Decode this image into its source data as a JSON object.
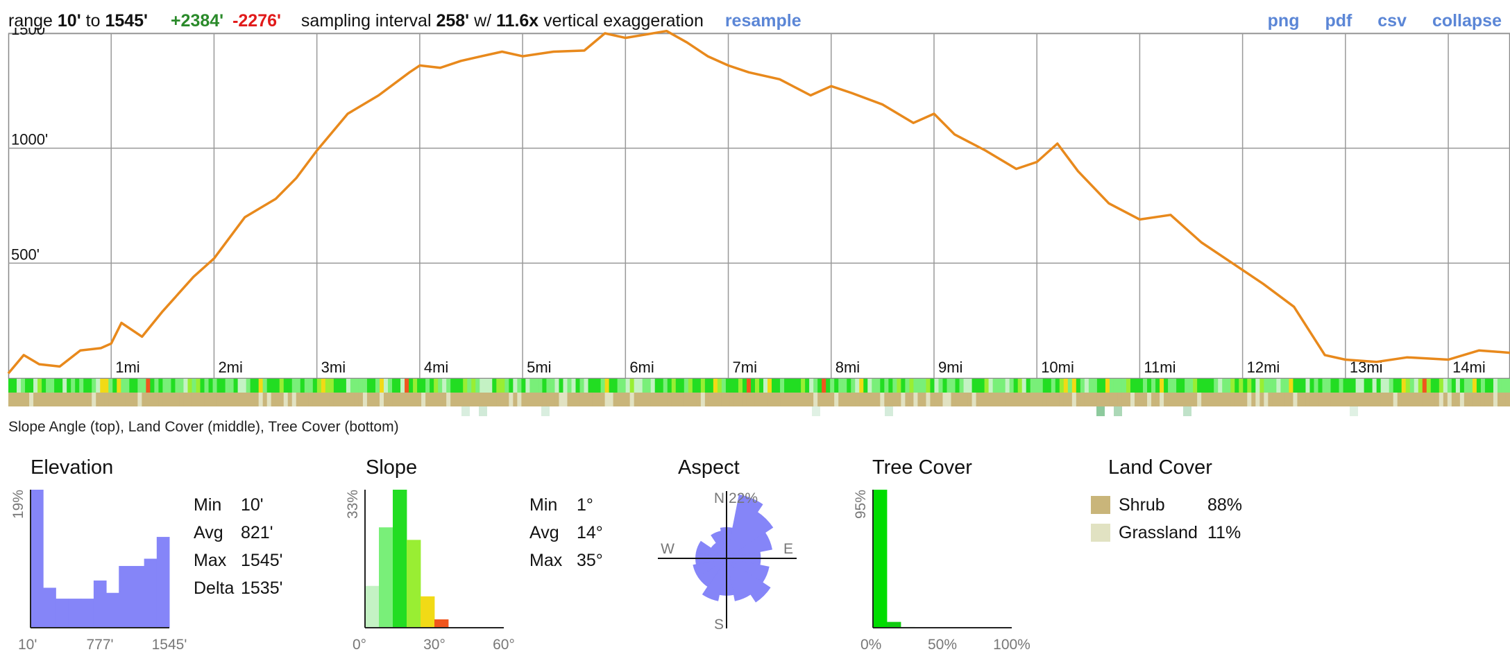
{
  "header": {
    "range_label": "range",
    "range_min": "10'",
    "range_to": "to",
    "range_max": "1545'",
    "gain": "+2384'",
    "loss": "-2276'",
    "sampling_label": "sampling interval",
    "sampling_value": "258'",
    "sampling_with": "w/",
    "exaggeration_value": "11.6x",
    "exaggeration_label": "vertical exaggeration",
    "resample_link": "resample",
    "links": {
      "png": "png",
      "pdf": "pdf",
      "csv": "csv",
      "collapse": "collapse"
    }
  },
  "chart_data": [
    {
      "type": "line",
      "name": "elevation-profile",
      "x_unit": "mi",
      "y_unit": "ft",
      "xlim": [
        0,
        14.6
      ],
      "ylim": [
        0,
        1500
      ],
      "y_ticks": [
        {
          "value": 500,
          "label": "500'"
        },
        {
          "value": 1000,
          "label": "1000'"
        },
        {
          "value": 1500,
          "label": "1500'"
        }
      ],
      "x_ticks": [
        {
          "value": 1,
          "label": "1mi"
        },
        {
          "value": 2,
          "label": "2mi"
        },
        {
          "value": 3,
          "label": "3mi"
        },
        {
          "value": 4,
          "label": "4mi"
        },
        {
          "value": 5,
          "label": "5mi"
        },
        {
          "value": 6,
          "label": "6mi"
        },
        {
          "value": 7,
          "label": "7mi"
        },
        {
          "value": 8,
          "label": "8mi"
        },
        {
          "value": 9,
          "label": "9mi"
        },
        {
          "value": 10,
          "label": "10mi"
        },
        {
          "value": 11,
          "label": "11mi"
        },
        {
          "value": 12,
          "label": "12mi"
        },
        {
          "value": 13,
          "label": "13mi"
        },
        {
          "value": 14,
          "label": "14mi"
        }
      ],
      "grid": true,
      "line_color": "#e8891c",
      "x": [
        0,
        0.15,
        0.3,
        0.5,
        0.7,
        0.9,
        1.0,
        1.1,
        1.3,
        1.5,
        1.6,
        1.8,
        2.0,
        2.3,
        2.6,
        2.8,
        3.0,
        3.3,
        3.6,
        3.9,
        4.0,
        4.2,
        4.4,
        4.6,
        4.8,
        5.0,
        5.3,
        5.6,
        5.8,
        5.9,
        6.0,
        6.2,
        6.4,
        6.6,
        6.8,
        7.0,
        7.2,
        7.5,
        7.8,
        8.0,
        8.2,
        8.5,
        8.8,
        9.0,
        9.2,
        9.5,
        9.8,
        10.0,
        10.2,
        10.4,
        10.7,
        11.0,
        11.3,
        11.6,
        11.9,
        12.2,
        12.5,
        12.8,
        13.0,
        13.3,
        13.6,
        14.0,
        14.3,
        14.6
      ],
      "y": [
        20,
        100,
        60,
        50,
        120,
        130,
        150,
        240,
        180,
        290,
        340,
        440,
        520,
        700,
        780,
        870,
        990,
        1150,
        1230,
        1330,
        1360,
        1350,
        1380,
        1400,
        1420,
        1400,
        1420,
        1425,
        1500,
        1490,
        1480,
        1495,
        1510,
        1460,
        1400,
        1360,
        1330,
        1300,
        1230,
        1270,
        1240,
        1190,
        1110,
        1150,
        1060,
        990,
        910,
        940,
        1020,
        900,
        760,
        690,
        710,
        590,
        500,
        410,
        310,
        100,
        80,
        70,
        90,
        80,
        120,
        110
      ]
    },
    {
      "type": "bar",
      "name": "elevation-histogram",
      "title": "Elevation",
      "y_axis_label": "19%",
      "x_tick_labels": [
        "10'",
        "777'",
        "1545'"
      ],
      "values": [
        19,
        5.5,
        4,
        4,
        4,
        6.5,
        4.8,
        8.5,
        8.5,
        9.5,
        12.5
      ],
      "ymax": 19,
      "color": "#8585f8"
    },
    {
      "type": "bar",
      "name": "slope-histogram",
      "title": "Slope",
      "y_axis_label": "33%",
      "x_tick_labels": [
        "0°",
        "30°",
        "60°"
      ],
      "x_range": [
        0,
        60
      ],
      "bins": [
        {
          "from": 0,
          "to": 6,
          "value": 10,
          "color": "#c4f2c4"
        },
        {
          "from": 6,
          "to": 12,
          "value": 24,
          "color": "#79ef79"
        },
        {
          "from": 12,
          "to": 18,
          "value": 33,
          "color": "#22dd22"
        },
        {
          "from": 18,
          "to": 24,
          "value": 21,
          "color": "#99ee33"
        },
        {
          "from": 24,
          "to": 30,
          "value": 7.5,
          "color": "#f1da16"
        },
        {
          "from": 30,
          "to": 36,
          "value": 2,
          "color": "#f0561e"
        }
      ],
      "ymax": 33
    },
    {
      "type": "polar",
      "name": "aspect-rose",
      "title": "Aspect",
      "max_label": "22%",
      "directions": [
        "N",
        "NNE",
        "NE",
        "ENE",
        "E",
        "ESE",
        "SE",
        "SSE",
        "S",
        "SSW",
        "SW",
        "WSW",
        "W",
        "WNW",
        "NW",
        "NNW"
      ],
      "values": [
        10,
        21,
        18,
        15,
        11,
        14,
        17,
        14,
        12,
        14,
        11,
        11,
        10,
        10,
        6,
        9
      ],
      "max": 22,
      "compass": {
        "n": "N",
        "e": "E",
        "s": "S",
        "w": "W"
      },
      "color": "#8585f8"
    },
    {
      "type": "bar",
      "name": "tree-cover-histogram",
      "title": "Tree Cover",
      "y_axis_label": "95%",
      "x_tick_labels": [
        "0%",
        "50%",
        "100%"
      ],
      "x_range": [
        0,
        100
      ],
      "bins": [
        {
          "from": 0,
          "to": 10,
          "value": 95,
          "color": "#00dd00"
        },
        {
          "from": 10,
          "to": 20,
          "value": 4,
          "color": "#11cc11"
        },
        {
          "from": 20,
          "to": 30,
          "value": 0.5,
          "color": "#11bb11"
        }
      ],
      "ymax": 95
    }
  ],
  "strips": {
    "caption": "Slope Angle (top), Land Cover (middle), Tree Cover (bottom)",
    "slope_colors": [
      "#c4f2c4",
      "#79ef79",
      "#22dd22",
      "#99ee33",
      "#f1da16",
      "#f0561e"
    ],
    "land_colors": {
      "shrub": "#c9b57a",
      "grassland": "#e1e2c2"
    },
    "tree_color": "#2f9e4c"
  },
  "elevation_stats": {
    "min_label": "Min",
    "min": "10'",
    "avg_label": "Avg",
    "avg": "821'",
    "max_label": "Max",
    "max": "1545'",
    "delta_label": "Delta",
    "delta": "1535'"
  },
  "slope_stats": {
    "min_label": "Min",
    "min": "1°",
    "avg_label": "Avg",
    "avg": "14°",
    "max_label": "Max",
    "max": "35°"
  },
  "land_cover": {
    "title": "Land Cover",
    "items": [
      {
        "name": "Shrub",
        "percent": "88%",
        "color": "#c9b57a"
      },
      {
        "name": "Grassland",
        "percent": "11%",
        "color": "#e1e2c2"
      }
    ]
  }
}
